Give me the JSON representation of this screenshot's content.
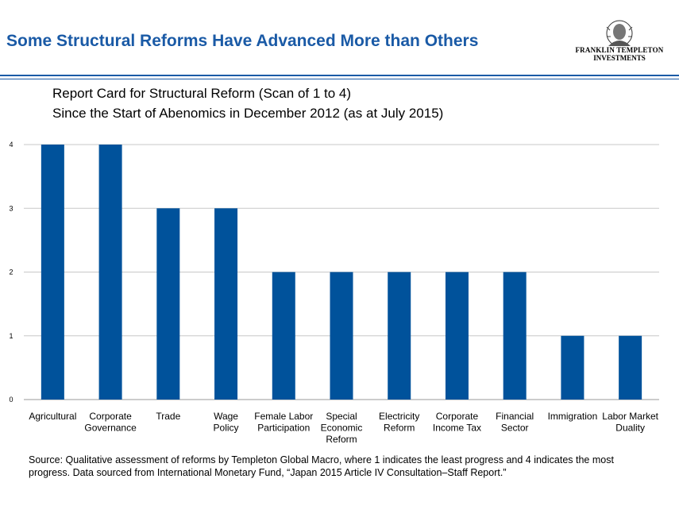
{
  "header": {
    "title": "Some Structural Reforms Have Advanced More than Others",
    "logo_line1": "FRANKLIN TEMPLETON",
    "logo_line2": "INVESTMENTS"
  },
  "chart_data": {
    "type": "bar",
    "title": "Report Card for Structural  Reform (Scan of 1 to 4)",
    "subtitle": "Since the Start of Abenomics in December 2012 (as at July 2015)",
    "categories": [
      [
        "Agricultural"
      ],
      [
        "Corporate",
        "Governance"
      ],
      [
        "Trade"
      ],
      [
        "Wage",
        "Policy"
      ],
      [
        "Female Labor",
        "Participation"
      ],
      [
        "Special",
        "Economic",
        "Reform"
      ],
      [
        "Electricity",
        "Reform"
      ],
      [
        "Corporate",
        "Income Tax"
      ],
      [
        "Financial",
        "Sector"
      ],
      [
        "Immigration"
      ],
      [
        "Labor Market",
        "Duality"
      ]
    ],
    "values": [
      4,
      4,
      3,
      3,
      2,
      2,
      2,
      2,
      2,
      1,
      1
    ],
    "yticks": [
      "0",
      "1",
      "2",
      "3",
      "4"
    ],
    "ylim": [
      0,
      4
    ],
    "grid": true,
    "bar_color": "#00529b"
  },
  "footer": {
    "source": "Source: Qualitative assessment of reforms by Templeton Global Macro, where 1 indicates the least progress and 4 indicates the most progress. Data sourced from International Monetary Fund, “Japan 2015 Article IV Consultation–Staff Report.”"
  }
}
